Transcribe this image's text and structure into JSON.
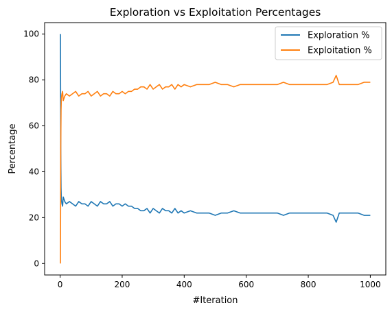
{
  "chart_data": {
    "type": "line",
    "title": "Exploration vs Exploitation Percentages",
    "xlabel": "#Iteration",
    "ylabel": "Percentage",
    "xlim": [
      -50,
      1050
    ],
    "ylim": [
      -5,
      105
    ],
    "xticks": [
      0,
      200,
      400,
      600,
      800,
      1000
    ],
    "yticks": [
      0,
      20,
      40,
      60,
      80,
      100
    ],
    "grid": false,
    "legend_position": "top-right",
    "series": [
      {
        "name": "Exploration %",
        "color": "#1f77b4",
        "x": [
          1,
          2,
          3,
          4,
          6,
          8,
          10,
          15,
          20,
          30,
          40,
          50,
          60,
          70,
          80,
          90,
          100,
          110,
          120,
          130,
          140,
          150,
          160,
          170,
          180,
          190,
          200,
          210,
          220,
          230,
          240,
          250,
          260,
          270,
          280,
          290,
          300,
          310,
          320,
          330,
          340,
          350,
          360,
          370,
          380,
          390,
          400,
          420,
          440,
          460,
          480,
          500,
          520,
          540,
          560,
          580,
          600,
          620,
          640,
          660,
          680,
          700,
          720,
          740,
          760,
          780,
          800,
          820,
          840,
          860,
          880,
          890,
          900,
          920,
          940,
          960,
          980,
          1000
        ],
        "y": [
          100,
          50,
          33,
          28,
          26,
          25,
          29,
          27,
          26,
          27,
          26,
          25,
          27,
          26,
          26,
          25,
          27,
          26,
          25,
          27,
          26,
          26,
          27,
          25,
          26,
          26,
          25,
          26,
          25,
          25,
          24,
          24,
          23,
          23,
          24,
          22,
          24,
          23,
          22,
          24,
          23,
          23,
          22,
          24,
          22,
          23,
          22,
          23,
          22,
          22,
          22,
          21,
          22,
          22,
          23,
          22,
          22,
          22,
          22,
          22,
          22,
          22,
          21,
          22,
          22,
          22,
          22,
          22,
          22,
          22,
          21,
          18,
          22,
          22,
          22,
          22,
          21,
          21
        ]
      },
      {
        "name": "Exploitation %",
        "color": "#ff7f0e",
        "x": [
          1,
          2,
          3,
          4,
          6,
          8,
          10,
          15,
          20,
          30,
          40,
          50,
          60,
          70,
          80,
          90,
          100,
          110,
          120,
          130,
          140,
          150,
          160,
          170,
          180,
          190,
          200,
          210,
          220,
          230,
          240,
          250,
          260,
          270,
          280,
          290,
          300,
          310,
          320,
          330,
          340,
          350,
          360,
          370,
          380,
          390,
          400,
          420,
          440,
          460,
          480,
          500,
          520,
          540,
          560,
          580,
          600,
          620,
          640,
          660,
          680,
          700,
          720,
          740,
          760,
          780,
          800,
          820,
          840,
          860,
          880,
          890,
          900,
          920,
          940,
          960,
          980,
          1000
        ],
        "y": [
          0,
          50,
          67,
          72,
          74,
          75,
          71,
          73,
          74,
          73,
          74,
          75,
          73,
          74,
          74,
          75,
          73,
          74,
          75,
          73,
          74,
          74,
          73,
          75,
          74,
          74,
          75,
          74,
          75,
          75,
          76,
          76,
          77,
          77,
          76,
          78,
          76,
          77,
          78,
          76,
          77,
          77,
          78,
          76,
          78,
          77,
          78,
          77,
          78,
          78,
          78,
          79,
          78,
          78,
          77,
          78,
          78,
          78,
          78,
          78,
          78,
          78,
          79,
          78,
          78,
          78,
          78,
          78,
          78,
          78,
          79,
          82,
          78,
          78,
          78,
          78,
          79,
          79
        ]
      }
    ]
  }
}
